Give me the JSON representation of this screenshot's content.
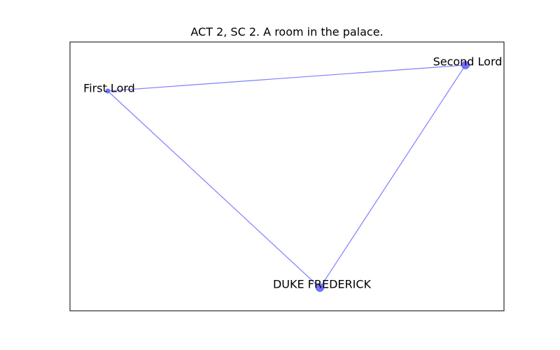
{
  "title": "ACT 2, SC 2. A room in the palace.",
  "colors": {
    "edge": "#7f7fff",
    "node": "#6b6bff",
    "frame": "#000000"
  },
  "nodes": [
    {
      "id": "first-lord",
      "label": "First Lord",
      "size": "small"
    },
    {
      "id": "second-lord",
      "label": "Second Lord",
      "size": "large"
    },
    {
      "id": "duke-frederick",
      "label": "DUKE FREDERICK",
      "size": "large"
    }
  ],
  "edges": [
    {
      "source": "first-lord",
      "target": "second-lord"
    },
    {
      "source": "second-lord",
      "target": "duke-frederick"
    },
    {
      "source": "first-lord",
      "target": "duke-frederick"
    }
  ]
}
